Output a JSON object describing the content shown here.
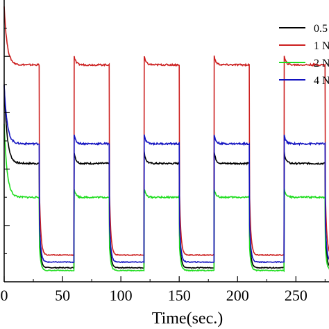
{
  "chart_data": {
    "type": "line",
    "title": "",
    "xlabel": "Time(sec.)",
    "ylabel": "",
    "xlim": [
      0,
      275
    ],
    "ylim": [
      0,
      1
    ],
    "x_ticks": [
      0,
      50,
      100,
      150,
      200,
      250
    ],
    "x_tick_labels": [
      "0",
      "50",
      "100",
      "150",
      "200",
      "250"
    ],
    "y_ticks": [
      0.2,
      0.4,
      0.6,
      0.8
    ],
    "grid": false,
    "legend_position": "top-right",
    "light_on_intervals": [
      [
        0,
        30
      ],
      [
        60,
        90
      ],
      [
        120,
        150
      ],
      [
        180,
        210
      ],
      [
        240,
        275
      ]
    ],
    "series": [
      {
        "name": "0.5",
        "color": "#000000",
        "start_peak": 0.7,
        "on_start": 0.46,
        "on_level": 0.42,
        "off_level": 0.05
      },
      {
        "name": "1 N",
        "color": "#cc1f1f",
        "start_peak": 0.98,
        "on_start": 0.8,
        "on_level": 0.77,
        "off_level": 0.095
      },
      {
        "name": "2 N",
        "color": "#1fdd1f",
        "start_peak": 0.56,
        "on_start": 0.33,
        "on_level": 0.3,
        "off_level": 0.04
      },
      {
        "name": "4 N",
        "color": "#1212c0",
        "start_peak": 0.7,
        "on_start": 0.52,
        "on_level": 0.49,
        "off_level": 0.07
      }
    ]
  }
}
